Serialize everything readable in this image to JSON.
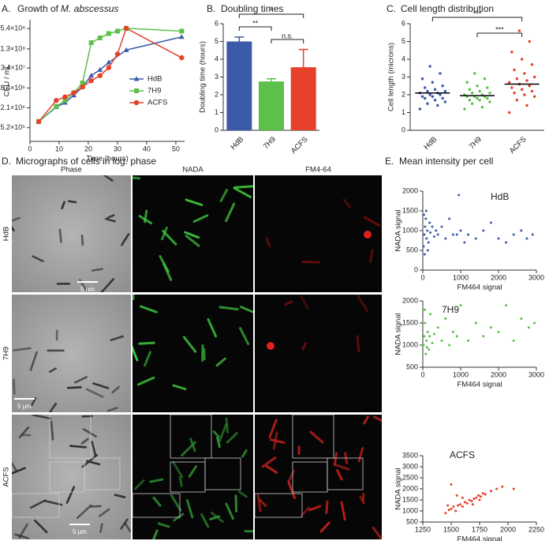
{
  "chart_data": [
    {
      "type": "line",
      "panel": "A.",
      "title": "Growth of",
      "title_italic": "M. abscessus",
      "x_label": "Time (hours)",
      "y_label": "CFU / mL",
      "log_y": true,
      "xlim": [
        0,
        53
      ],
      "xticks": [
        0,
        10,
        20,
        30,
        40,
        50
      ],
      "ylim": [
        200000,
        1000000000
      ],
      "yticks": [
        {
          "value": 520000,
          "label": "5.2×10⁵"
        },
        {
          "value": 2100000,
          "label": "2.1×10⁶"
        },
        {
          "value": 8400000,
          "label": "8.4×10⁶"
        },
        {
          "value": 34000000,
          "label": "3.4×10⁷"
        },
        {
          "value": 130000000,
          "label": "1.3×10⁸"
        },
        {
          "value": 540000000,
          "label": "5.4×10⁸"
        }
      ],
      "legend": "right",
      "series": [
        {
          "name": "HdB",
          "color": "#3b5ba9",
          "marker": "triangle",
          "x": [
            3,
            9,
            12,
            15,
            18,
            21,
            24,
            27,
            33,
            52
          ],
          "values": [
            800000,
            2200000,
            3000000,
            5000000,
            9000000,
            20000000,
            30000000,
            50000000,
            120000000,
            300000000
          ]
        },
        {
          "name": "7H9",
          "color": "#5cc04a",
          "marker": "square",
          "x": [
            3,
            9,
            12,
            15,
            18,
            21,
            24,
            27,
            30,
            33,
            52
          ],
          "values": [
            800000,
            2300000,
            3500000,
            6000000,
            12000000,
            200000000,
            280000000,
            380000000,
            450000000,
            550000000,
            450000000
          ]
        },
        {
          "name": "ACFS",
          "color": "#e5412b",
          "marker": "circle",
          "x": [
            3,
            9,
            12,
            15,
            18,
            21,
            24,
            27,
            30,
            33,
            52
          ],
          "values": [
            800000,
            3500000,
            4500000,
            6000000,
            9000000,
            14000000,
            20000000,
            35000000,
            90000000,
            550000000,
            70000000
          ]
        }
      ]
    },
    {
      "type": "bar",
      "panel": "B.",
      "title": "Doubling times",
      "y_label": "Doubling time (hours)",
      "categories": [
        "HdB",
        "7H9",
        "ACFS"
      ],
      "values": [
        5.0,
        2.75,
        3.55
      ],
      "errors": [
        0.25,
        0.15,
        1.0
      ],
      "colors": [
        "#3b5ba9",
        "#5cc04a",
        "#e5412b"
      ],
      "ylim": [
        0,
        6
      ],
      "yticks": [
        0,
        1,
        2,
        3,
        4,
        5,
        6
      ],
      "annotations": [
        "*",
        "**",
        "n.s."
      ]
    },
    {
      "type": "strip",
      "panel": "C.",
      "title": "Cell length distribution",
      "y_label": "Cell length (microns)",
      "ylim": [
        0,
        6
      ],
      "yticks": [
        0,
        1,
        2,
        3,
        4,
        5,
        6
      ],
      "annotations": [
        "***",
        "***"
      ],
      "series": [
        {
          "name": "HdB",
          "color": "#3b5ba9",
          "mean": 2.1,
          "values": [
            1.2,
            1.4,
            1.5,
            1.6,
            1.7,
            1.8,
            1.8,
            1.9,
            1.9,
            2.0,
            2.0,
            2.1,
            2.1,
            2.2,
            2.2,
            2.3,
            2.4,
            2.5,
            2.7,
            2.9,
            3.2,
            3.6
          ]
        },
        {
          "name": "7H9",
          "color": "#5cc04a",
          "mean": 1.95,
          "values": [
            1.2,
            1.3,
            1.5,
            1.6,
            1.7,
            1.7,
            1.8,
            1.8,
            1.9,
            1.9,
            1.9,
            2.0,
            2.0,
            2.1,
            2.1,
            2.2,
            2.3,
            2.4,
            2.5,
            2.7,
            2.9,
            3.2
          ]
        },
        {
          "name": "ACFS",
          "color": "#e5412b",
          "mean": 2.6,
          "values": [
            1.0,
            1.4,
            1.7,
            1.9,
            2.0,
            2.1,
            2.2,
            2.3,
            2.4,
            2.5,
            2.6,
            2.7,
            2.8,
            2.9,
            3.0,
            3.2,
            3.4,
            3.7,
            4.0,
            4.4,
            5.0,
            5.6
          ]
        }
      ]
    },
    {
      "type": "scatter",
      "panel": "E.",
      "title": "Mean intensity per cell",
      "label": "HdB",
      "color": "#3b5ba9",
      "x_label": "FM464 signal",
      "y_label": "NADA signal",
      "xlim": [
        0,
        3000
      ],
      "xticks": [
        0,
        1000,
        2000,
        3000
      ],
      "ylim": [
        0,
        2000
      ],
      "yticks": [
        0,
        500,
        1000,
        1500,
        2000
      ],
      "x": [
        20,
        40,
        60,
        80,
        100,
        120,
        150,
        180,
        200,
        250,
        300,
        350,
        400,
        500,
        600,
        700,
        800,
        900,
        950,
        1000,
        1100,
        1200,
        1400,
        1600,
        1800,
        2000,
        2200,
        2400,
        2600,
        2750,
        2900,
        50,
        90,
        130,
        30
      ],
      "values": [
        600,
        900,
        1100,
        1300,
        800,
        1000,
        700,
        1200,
        950,
        1100,
        850,
        1000,
        900,
        1100,
        800,
        1300,
        900,
        900,
        1900,
        1000,
        700,
        900,
        800,
        1000,
        1200,
        800,
        700,
        900,
        1000,
        800,
        900,
        400,
        1500,
        500,
        1400
      ]
    },
    {
      "type": "scatter",
      "label": "7H9",
      "color": "#5cc04a",
      "x_label": "FM464 signal",
      "y_label": "NADA signal",
      "xlim": [
        0,
        3000
      ],
      "xticks": [
        0,
        1000,
        2000,
        3000
      ],
      "ylim": [
        500,
        2000
      ],
      "yticks": [
        500,
        1000,
        1500,
        2000
      ],
      "x": [
        20,
        40,
        60,
        80,
        100,
        130,
        160,
        200,
        250,
        300,
        400,
        500,
        600,
        700,
        800,
        900,
        1000,
        1200,
        1400,
        1600,
        1800,
        2000,
        2200,
        2400,
        2600,
        2800,
        2950,
        50,
        110,
        180
      ],
      "values": [
        1000,
        1200,
        1500,
        800,
        1100,
        1300,
        900,
        1700,
        1050,
        1250,
        1400,
        1100,
        1600,
        1000,
        1300,
        1200,
        1900,
        1100,
        1500,
        1200,
        1400,
        1300,
        1900,
        1100,
        1600,
        1400,
        1500,
        1800,
        950,
        1200
      ]
    },
    {
      "type": "scatter",
      "label": "ACFS",
      "color": "#e5412b",
      "x_label": "FM464 signal",
      "y_label": "NADA signal",
      "xlim": [
        1250,
        2250
      ],
      "xticks": [
        1250,
        1500,
        1750,
        2000,
        2250
      ],
      "ylim": [
        500,
        3500
      ],
      "yticks": [
        500,
        1000,
        1500,
        2000,
        2500,
        3000,
        3500
      ],
      "x": [
        1450,
        1480,
        1500,
        1520,
        1540,
        1560,
        1580,
        1600,
        1620,
        1640,
        1660,
        1680,
        1700,
        1720,
        1740,
        1760,
        1780,
        1800,
        1850,
        1900,
        1950,
        2050,
        1500,
        1550,
        1600,
        1470,
        1690,
        1750
      ],
      "values": [
        900,
        1050,
        1100,
        1200,
        1000,
        1250,
        1300,
        1200,
        1400,
        1350,
        1500,
        1450,
        1550,
        1600,
        1700,
        1650,
        1800,
        1750,
        1900,
        2000,
        2100,
        2000,
        2200,
        1700,
        1600,
        1250,
        1300,
        1500
      ]
    }
  ],
  "micrographs": {
    "panel": "D.",
    "title": "Micrographs of cells in log. phase",
    "columns": [
      "Phase",
      "NADA",
      "FM4-64"
    ],
    "rows": [
      "HdB",
      "7H9",
      "ACFS"
    ],
    "scale_bars": [
      "5 μm",
      "5 μm",
      "5 μm"
    ]
  }
}
